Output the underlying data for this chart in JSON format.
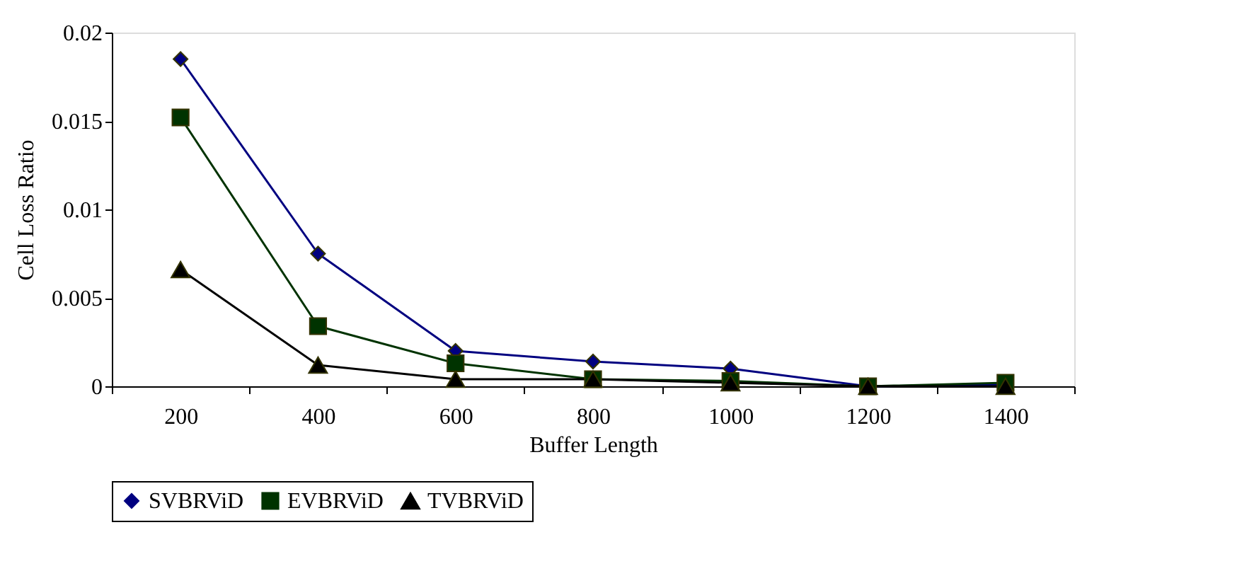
{
  "chart_data": {
    "type": "line",
    "xlabel": "Buffer Length",
    "ylabel": "Cell Loss Ratio",
    "categories": [
      "200",
      "400",
      "600",
      "800",
      "1000",
      "1200",
      "1400"
    ],
    "ylim": [
      0,
      0.02
    ],
    "yticks": [
      0,
      0.005,
      0.01,
      0.015,
      0.02
    ],
    "grid": false,
    "legend": "bottom",
    "line_style": "solid",
    "series": [
      {
        "name": "SVBRViD",
        "color": "#000080",
        "marker": "diamond",
        "values": [
          0.0185,
          0.0075,
          0.002,
          0.0014,
          0.001,
          0,
          0.0001
        ]
      },
      {
        "name": "EVBRViD",
        "color": "#003300",
        "marker": "square",
        "values": [
          0.0152,
          0.0034,
          0.0013,
          0.0004,
          0.0003,
          0,
          0.0002
        ]
      },
      {
        "name": "TVBRViD",
        "color": "#000000",
        "marker": "triangle",
        "values": [
          0.0066,
          0.0012,
          0.0004,
          0.0004,
          0.0002,
          0,
          0
        ]
      }
    ]
  }
}
